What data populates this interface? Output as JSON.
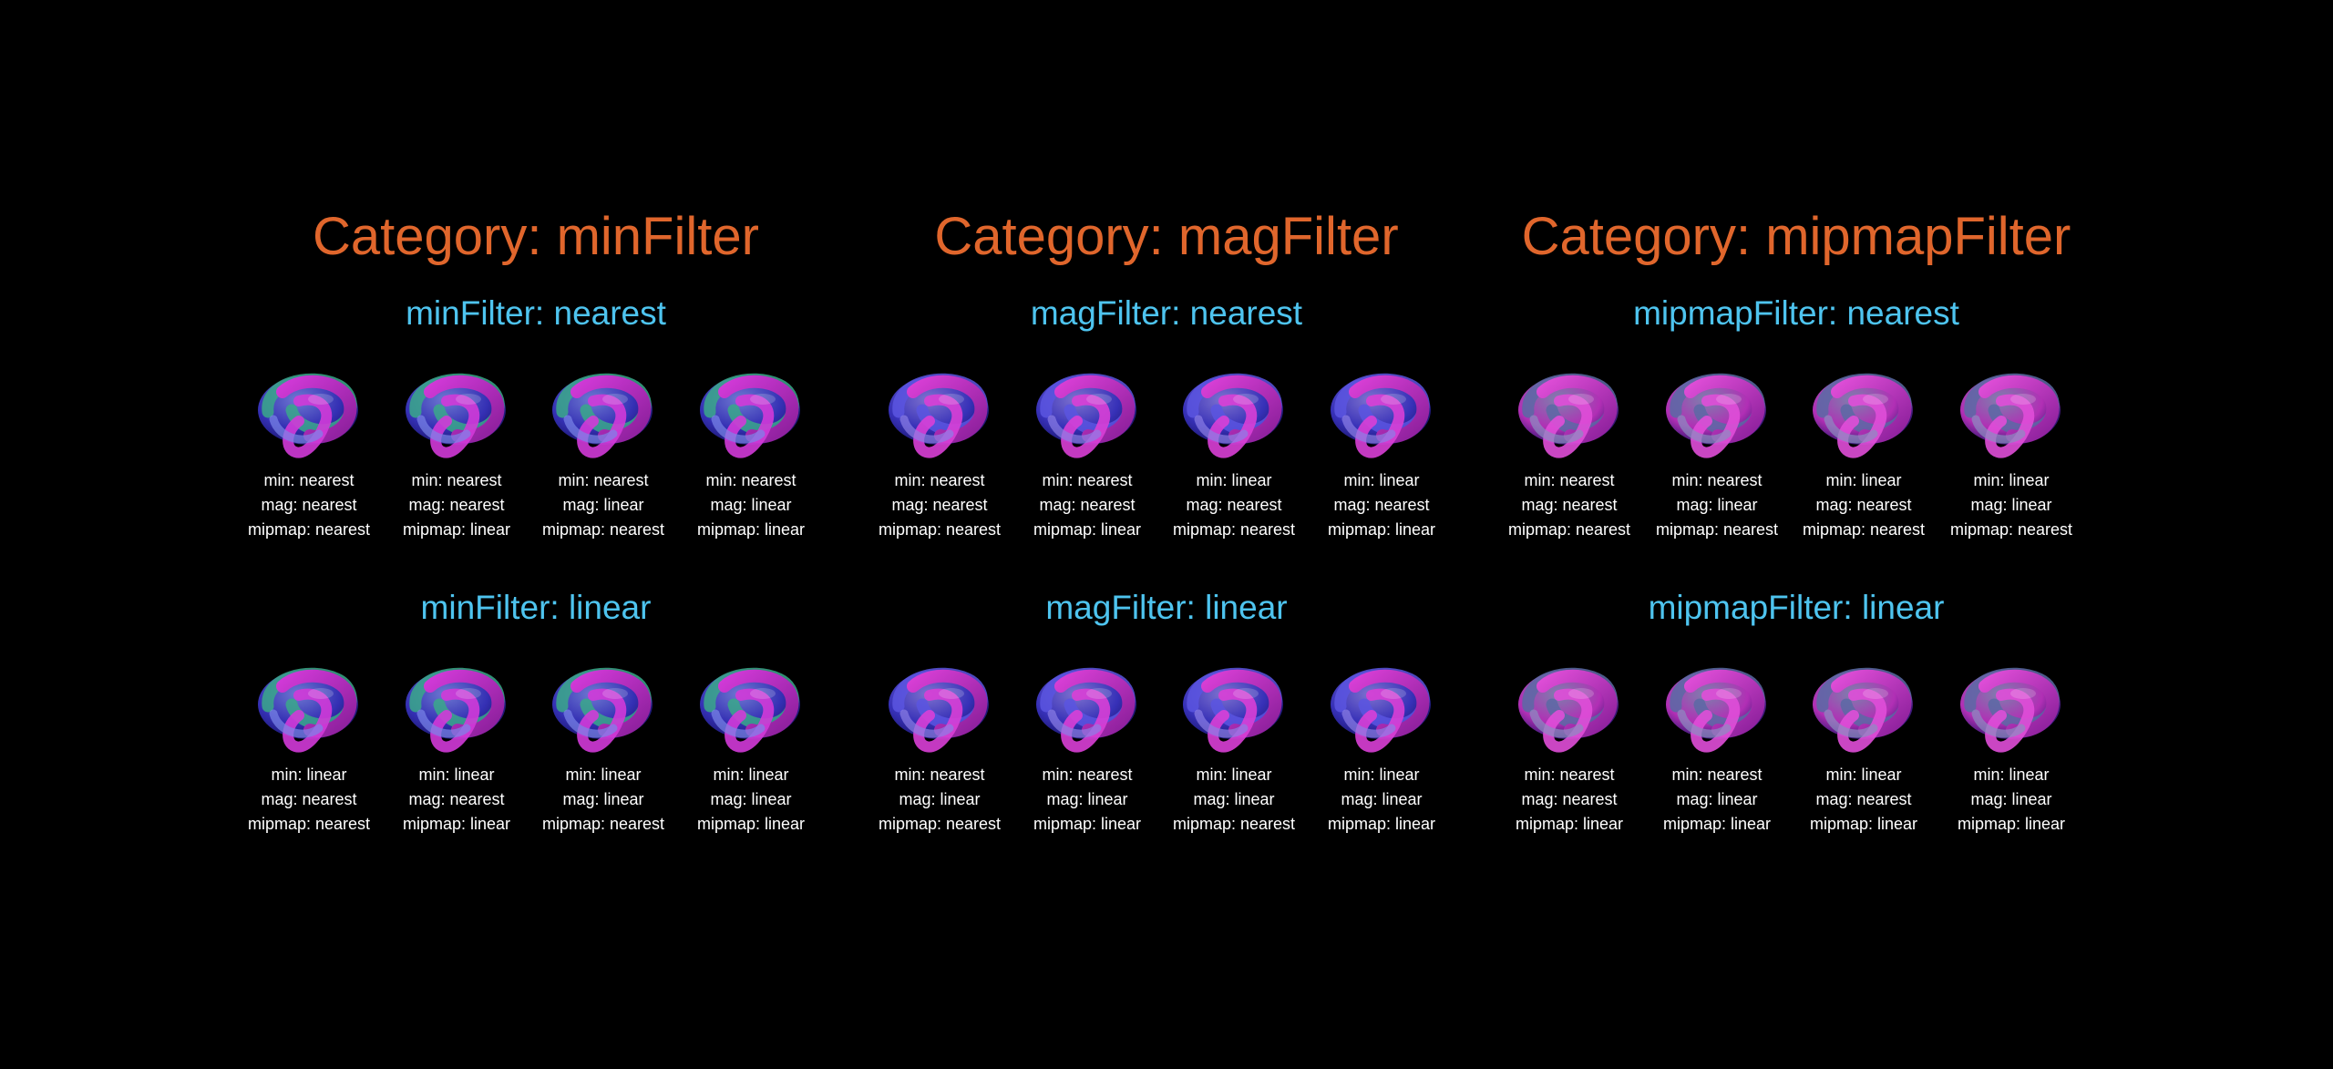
{
  "categories": [
    {
      "title": "Category: minFilter",
      "groups": [
        {
          "title": "minFilter: nearest",
          "cells": [
            {
              "min": "min: nearest",
              "mag": "mag: nearest",
              "mipmap": "mipmap: nearest",
              "tint": "knot-blue-green"
            },
            {
              "min": "min: nearest",
              "mag": "mag: nearest",
              "mipmap": "mipmap: linear",
              "tint": "knot-blue-green"
            },
            {
              "min": "min: nearest",
              "mag": "mag: linear",
              "mipmap": "mipmap: nearest",
              "tint": "knot-blue-green"
            },
            {
              "min": "min: nearest",
              "mag": "mag: linear",
              "mipmap": "mipmap: linear",
              "tint": "knot-blue-green"
            }
          ]
        },
        {
          "title": "minFilter: linear",
          "cells": [
            {
              "min": "min: linear",
              "mag": "mag: nearest",
              "mipmap": "mipmap: nearest",
              "tint": "knot-blue-green"
            },
            {
              "min": "min: linear",
              "mag": "mag: nearest",
              "mipmap": "mipmap: linear",
              "tint": "knot-blue-green"
            },
            {
              "min": "min: linear",
              "mag": "mag: linear",
              "mipmap": "mipmap: nearest",
              "tint": "knot-blue-green"
            },
            {
              "min": "min: linear",
              "mag": "mag: linear",
              "mipmap": "mipmap: linear",
              "tint": "knot-blue-green"
            }
          ]
        }
      ]
    },
    {
      "title": "Category: magFilter",
      "groups": [
        {
          "title": "magFilter: nearest",
          "cells": [
            {
              "min": "min: nearest",
              "mag": "mag: nearest",
              "mipmap": "mipmap: nearest",
              "tint": "knot-blue"
            },
            {
              "min": "min: nearest",
              "mag": "mag: nearest",
              "mipmap": "mipmap: linear",
              "tint": "knot-blue"
            },
            {
              "min": "min: linear",
              "mag": "mag: nearest",
              "mipmap": "mipmap: nearest",
              "tint": "knot-blue"
            },
            {
              "min": "min: linear",
              "mag": "mag: nearest",
              "mipmap": "mipmap: linear",
              "tint": "knot-blue"
            }
          ]
        },
        {
          "title": "magFilter: linear",
          "cells": [
            {
              "min": "min: nearest",
              "mag": "mag: linear",
              "mipmap": "mipmap: nearest",
              "tint": "knot-blue"
            },
            {
              "min": "min: nearest",
              "mag": "mag: linear",
              "mipmap": "mipmap: linear",
              "tint": "knot-blue"
            },
            {
              "min": "min: linear",
              "mag": "mag: linear",
              "mipmap": "mipmap: nearest",
              "tint": "knot-blue"
            },
            {
              "min": "min: linear",
              "mag": "mag: linear",
              "mipmap": "mipmap: linear",
              "tint": "knot-blue"
            }
          ]
        }
      ]
    },
    {
      "title": "Category: mipmapFilter",
      "groups": [
        {
          "title": "mipmapFilter: nearest",
          "cells": [
            {
              "min": "min: nearest",
              "mag": "mag: nearest",
              "mipmap": "mipmap: nearest",
              "tint": "knot-magenta"
            },
            {
              "min": "min: nearest",
              "mag": "mag: linear",
              "mipmap": "mipmap: nearest",
              "tint": "knot-magenta"
            },
            {
              "min": "min: linear",
              "mag": "mag: nearest",
              "mipmap": "mipmap: nearest",
              "tint": "knot-magenta"
            },
            {
              "min": "min: linear",
              "mag": "mag: linear",
              "mipmap": "mipmap: nearest",
              "tint": "knot-magenta"
            }
          ]
        },
        {
          "title": "mipmapFilter: linear",
          "cells": [
            {
              "min": "min: nearest",
              "mag": "mag: nearest",
              "mipmap": "mipmap: linear",
              "tint": "knot-magenta"
            },
            {
              "min": "min: nearest",
              "mag": "mag: linear",
              "mipmap": "mipmap: linear",
              "tint": "knot-magenta"
            },
            {
              "min": "min: linear",
              "mag": "mag: nearest",
              "mipmap": "mipmap: linear",
              "tint": "knot-magenta"
            },
            {
              "min": "min: linear",
              "mag": "mag: linear",
              "mipmap": "mipmap: linear",
              "tint": "knot-magenta"
            }
          ]
        }
      ]
    }
  ],
  "colors": {
    "background": "#000000",
    "category_title": "#e0662c",
    "group_title": "#4ec4ef",
    "cell_label": "#ffffff"
  }
}
